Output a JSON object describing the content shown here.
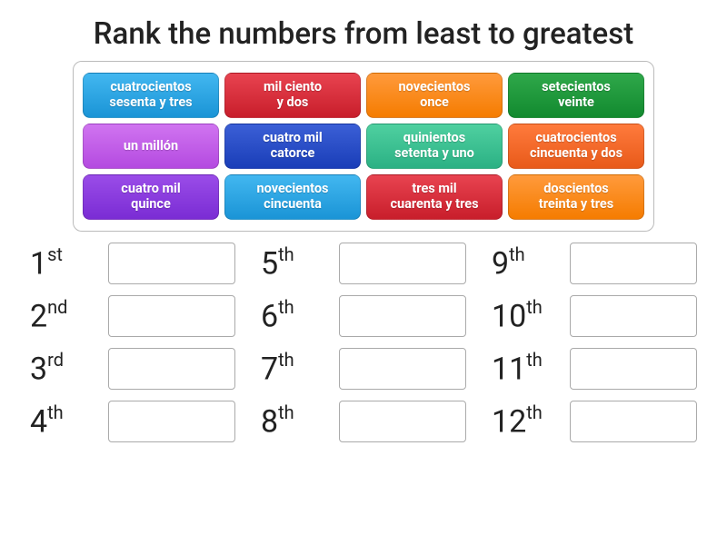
{
  "title": "Rank the numbers from least to greatest",
  "tile_rows": [
    [
      {
        "label": "cuatrocientos\nsesenta y tres",
        "bg": "linear-gradient(#42b7f0,#1a94d6)"
      },
      {
        "label": "mil ciento\ny dos",
        "bg": "linear-gradient(#e84350,#c81e2b)"
      },
      {
        "label": "novecientos\nonce",
        "bg": "linear-gradient(#ff9a3c,#f57c00)"
      },
      {
        "label": "setecientos\nveinte",
        "bg": "linear-gradient(#2fa84a,#128a2f)"
      }
    ],
    [
      {
        "label": "un millón",
        "bg": "linear-gradient(#d074f0,#b44ae0)"
      },
      {
        "label": "cuatro mil\ncatorce",
        "bg": "linear-gradient(#3b5fd6,#1a3eb8)"
      },
      {
        "label": "quinientos\nsetenta y uno",
        "bg": "linear-gradient(#4fd0a0,#2bb184)"
      },
      {
        "label": "cuatrocientos\ncincuenta y dos",
        "bg": "linear-gradient(#ff7a3c,#e85a1a)"
      }
    ],
    [
      {
        "label": "cuatro mil\nquince",
        "bg": "linear-gradient(#9a4ce8,#7a2cd4)"
      },
      {
        "label": "novecientos\ncincuenta",
        "bg": "linear-gradient(#42b7f0,#1a94d6)"
      },
      {
        "label": "tres mil\ncuarenta y tres",
        "bg": "linear-gradient(#e84350,#c81e2b)"
      },
      {
        "label": "doscientos\ntreinta y tres",
        "bg": "linear-gradient(#ff9a3c,#f57c00)"
      }
    ]
  ],
  "slot_columns": [
    [
      {
        "num": "1",
        "suf": "st"
      },
      {
        "num": "2",
        "suf": "nd"
      },
      {
        "num": "3",
        "suf": "rd"
      },
      {
        "num": "4",
        "suf": "th"
      }
    ],
    [
      {
        "num": "5",
        "suf": "th"
      },
      {
        "num": "6",
        "suf": "th"
      },
      {
        "num": "7",
        "suf": "th"
      },
      {
        "num": "8",
        "suf": "th"
      }
    ],
    [
      {
        "num": "9",
        "suf": "th"
      },
      {
        "num": "10",
        "suf": "th"
      },
      {
        "num": "11",
        "suf": "th"
      },
      {
        "num": "12",
        "suf": "th"
      }
    ]
  ]
}
